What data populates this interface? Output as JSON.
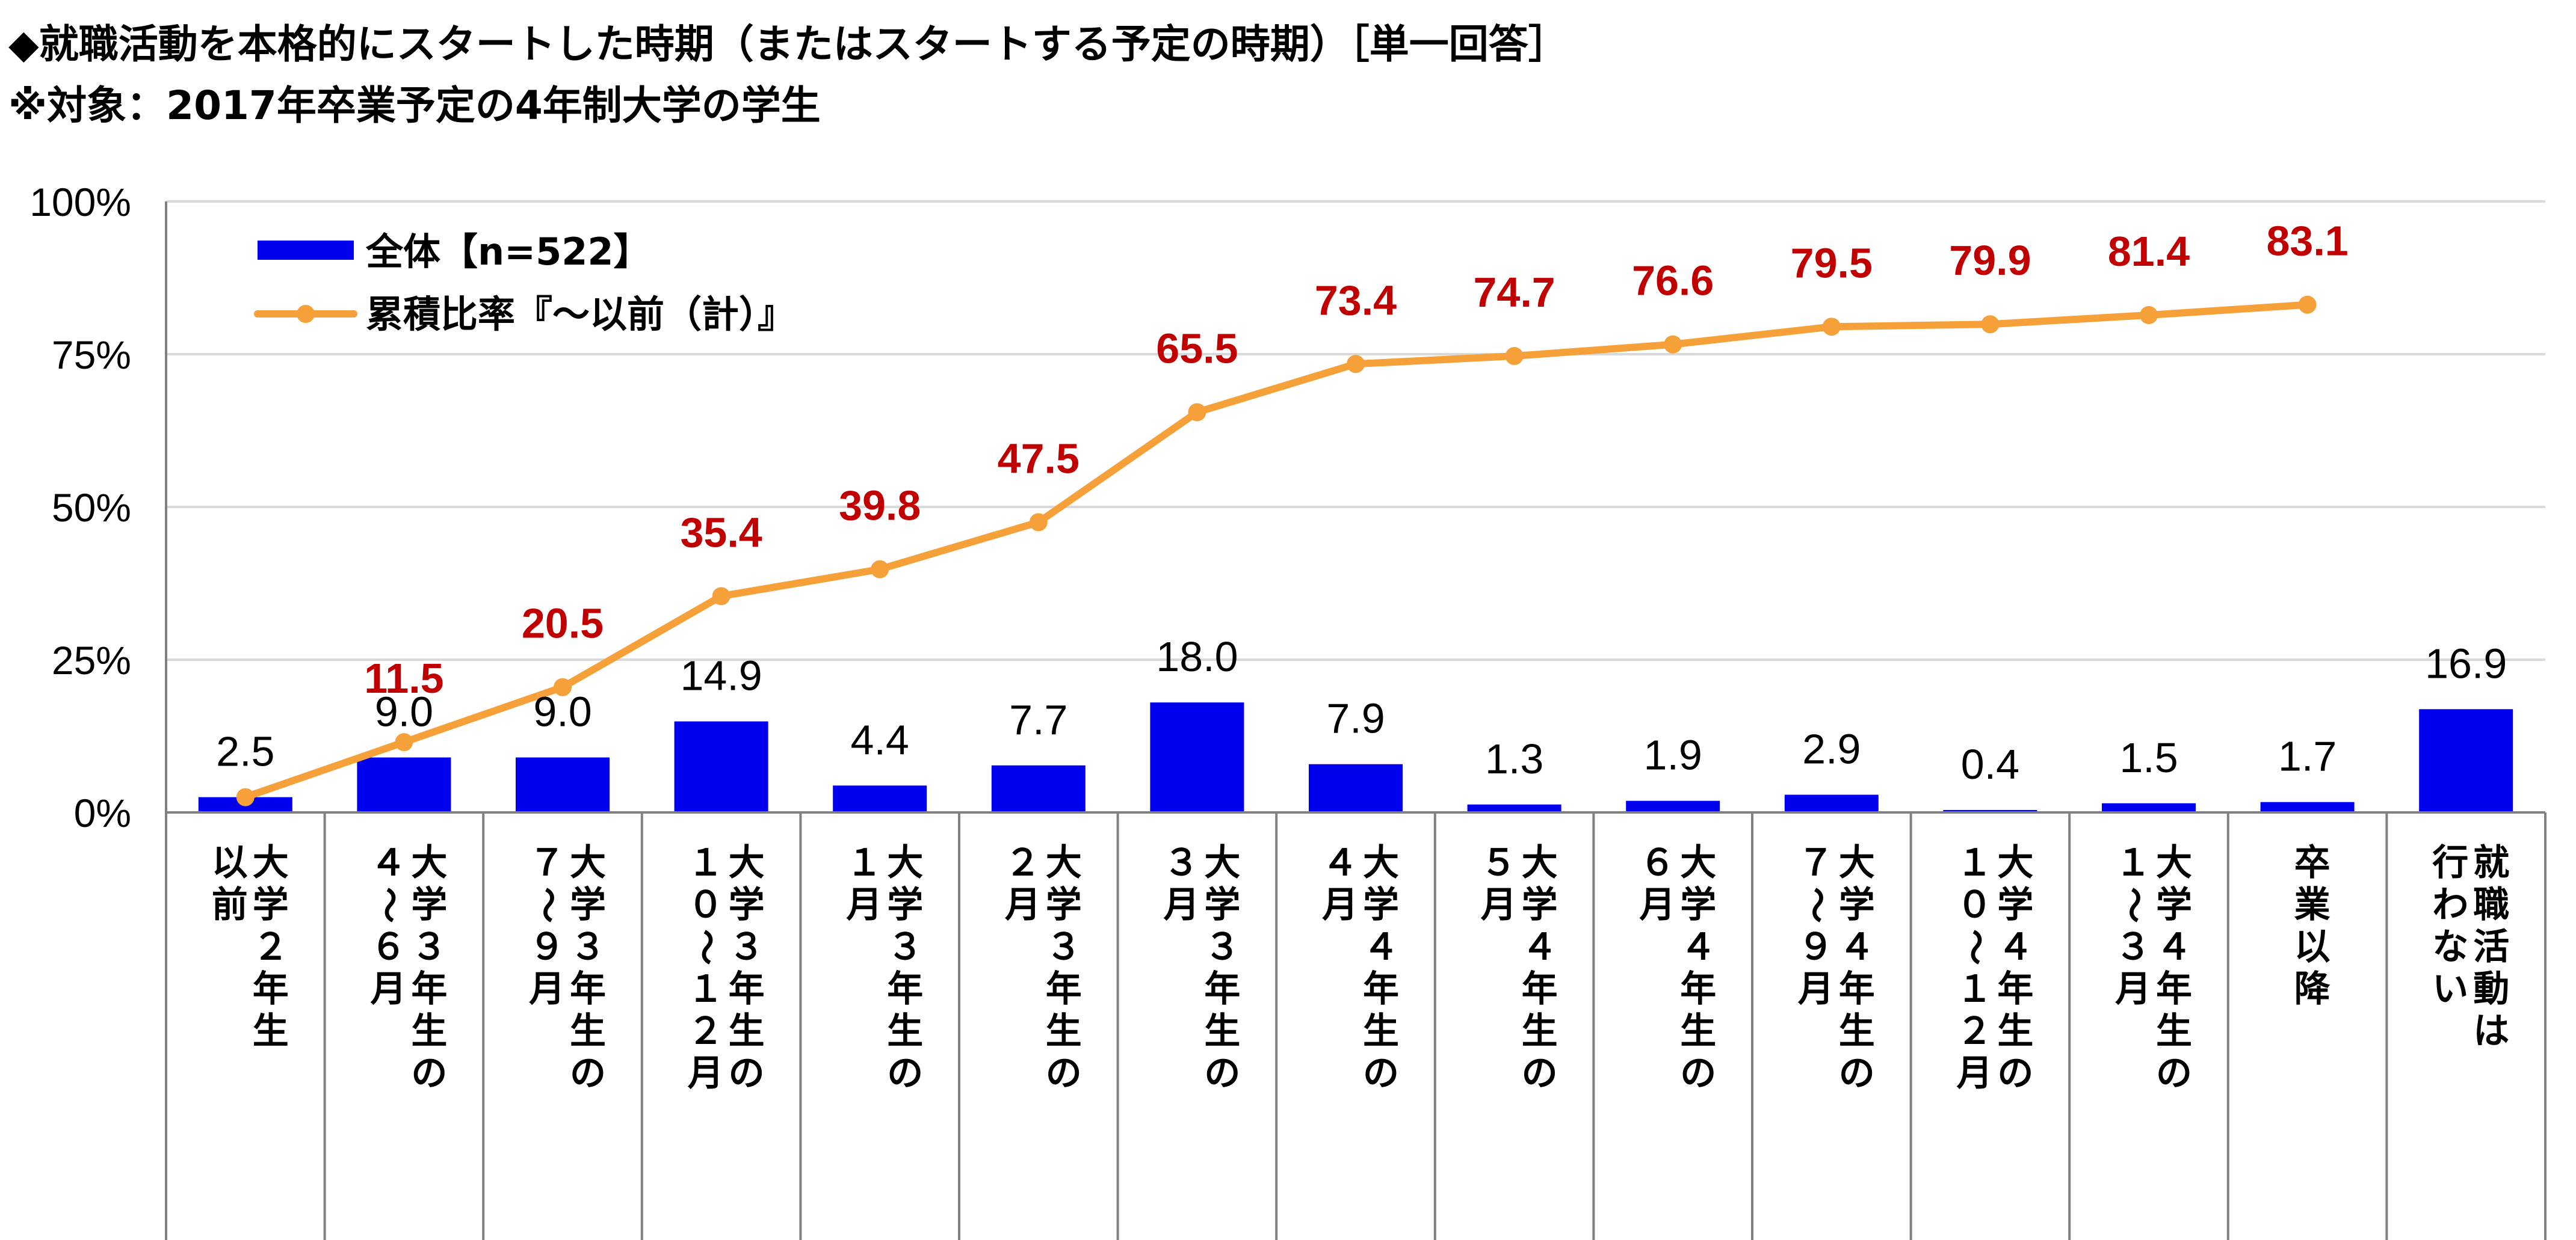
{
  "title_line1": "◆就職活動を本格的にスタートした時期（またはスタートする予定の時期）［単一回答］",
  "title_line2": "※対象：2017年卒業予定の4年制大学の学生",
  "colors": {
    "bar": "#0000ee",
    "line": "#f5a038",
    "cumulative_label": "#c00000",
    "grid": "#d9d9d9",
    "axis": "#808080"
  },
  "chart_data": {
    "type": "bar",
    "ylim": [
      0,
      100
    ],
    "y_ticks": [
      "0%",
      "25%",
      "50%",
      "75%",
      "100%"
    ],
    "y_tick_values": [
      0,
      25,
      50,
      75,
      100
    ],
    "grid": true,
    "legend_position": "top-left",
    "categories": [
      [
        [
          "大",
          "学",
          "２",
          "年",
          "生"
        ],
        [
          "以",
          "前"
        ]
      ],
      [
        [
          "大",
          "学",
          "３",
          "年",
          "生",
          "の"
        ],
        [
          "４",
          "〜",
          "６",
          "月"
        ]
      ],
      [
        [
          "大",
          "学",
          "３",
          "年",
          "生",
          "の"
        ],
        [
          "７",
          "〜",
          "９",
          "月"
        ]
      ],
      [
        [
          "大",
          "学",
          "３",
          "年",
          "生",
          "の"
        ],
        [
          "１",
          "０",
          "〜",
          "１",
          "２",
          "月"
        ]
      ],
      [
        [
          "大",
          "学",
          "３",
          "年",
          "生",
          "の"
        ],
        [
          "１",
          "月"
        ]
      ],
      [
        [
          "大",
          "学",
          "３",
          "年",
          "生",
          "の"
        ],
        [
          "２",
          "月"
        ]
      ],
      [
        [
          "大",
          "学",
          "３",
          "年",
          "生",
          "の"
        ],
        [
          "３",
          "月"
        ]
      ],
      [
        [
          "大",
          "学",
          "４",
          "年",
          "生",
          "の"
        ],
        [
          "４",
          "月"
        ]
      ],
      [
        [
          "大",
          "学",
          "４",
          "年",
          "生",
          "の"
        ],
        [
          "５",
          "月"
        ]
      ],
      [
        [
          "大",
          "学",
          "４",
          "年",
          "生",
          "の"
        ],
        [
          "６",
          "月"
        ]
      ],
      [
        [
          "大",
          "学",
          "４",
          "年",
          "生",
          "の"
        ],
        [
          "７",
          "〜",
          "９",
          "月"
        ]
      ],
      [
        [
          "大",
          "学",
          "４",
          "年",
          "生",
          "の"
        ],
        [
          "１",
          "０",
          "〜",
          "１",
          "２",
          "月"
        ]
      ],
      [
        [
          "大",
          "学",
          "４",
          "年",
          "生",
          "の"
        ],
        [
          "１",
          "〜",
          "３",
          "月"
        ]
      ],
      [
        [
          "卒",
          "業",
          "以",
          "降"
        ]
      ],
      [
        [
          "就",
          "職",
          "活",
          "動",
          "は"
        ],
        [
          "行",
          "わ",
          "な",
          "い"
        ]
      ]
    ],
    "series": [
      {
        "name": "全体【n=522】",
        "type": "bar",
        "values": [
          2.5,
          9.0,
          9.0,
          14.9,
          4.4,
          7.7,
          18.0,
          7.9,
          1.3,
          1.9,
          2.9,
          0.4,
          1.5,
          1.7,
          16.9
        ],
        "labels": [
          "2.5",
          "9.0",
          "9.0",
          "14.9",
          "4.4",
          "7.7",
          "18.0",
          "7.9",
          "1.3",
          "1.9",
          "2.9",
          "0.4",
          "1.5",
          "1.7",
          "16.9"
        ]
      },
      {
        "name": "累積比率『〜以前（計）』",
        "type": "line",
        "values": [
          2.5,
          11.5,
          20.5,
          35.4,
          39.8,
          47.5,
          65.5,
          73.4,
          74.7,
          76.6,
          79.5,
          79.9,
          81.4,
          83.1,
          null
        ],
        "labels": [
          "",
          "11.5",
          "20.5",
          "35.4",
          "39.8",
          "47.5",
          "65.5",
          "73.4",
          "74.7",
          "76.6",
          "79.5",
          "79.9",
          "81.4",
          "83.1",
          ""
        ]
      }
    ]
  }
}
